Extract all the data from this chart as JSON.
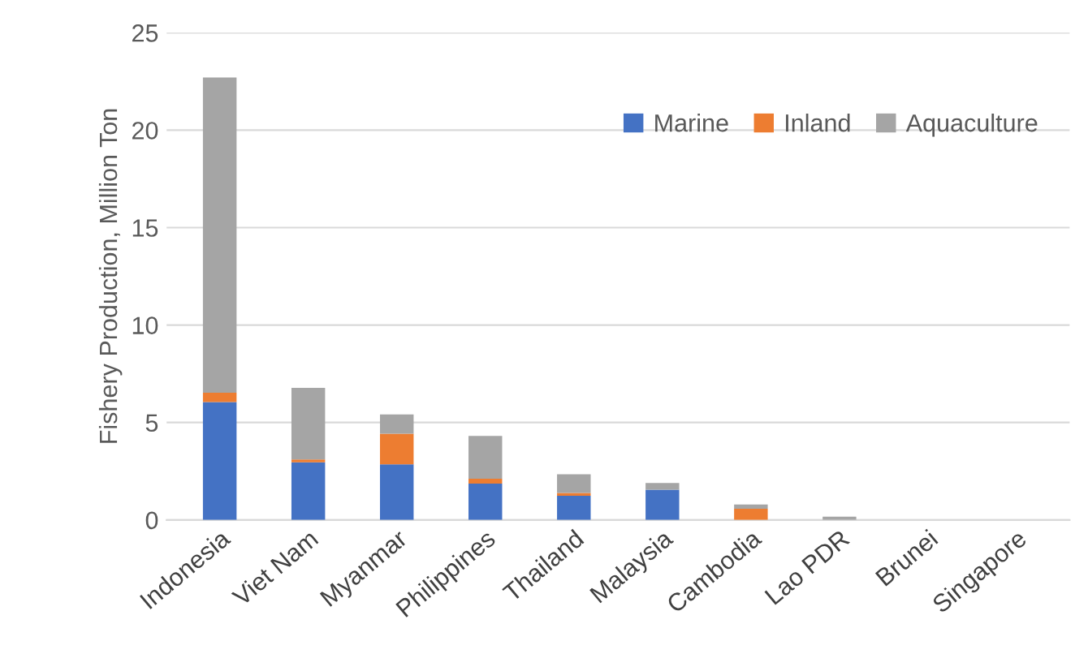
{
  "chart_data": {
    "type": "bar",
    "stacked": true,
    "ylabel": "Fishery Production, Million Ton",
    "categories": [
      "Indonesia",
      "Viet Nam",
      "Myanmar",
      "Philippines",
      "Thailand",
      "Malaysia",
      "Cambodia",
      "Lao PDR",
      "Brunei",
      "Singapore"
    ],
    "series": [
      {
        "name": "Marine",
        "color": "#4472c4",
        "values": [
          6.05,
          2.96,
          2.85,
          1.86,
          1.24,
          1.55,
          0,
          0,
          0,
          0
        ]
      },
      {
        "name": "Inland",
        "color": "#ed7d31",
        "values": [
          0.48,
          0.14,
          1.57,
          0.25,
          0.14,
          0,
          0.57,
          0,
          0,
          0
        ]
      },
      {
        "name": "Aquaculture",
        "color": "#a5a5a5",
        "values": [
          16.17,
          3.68,
          0.99,
          2.2,
          0.96,
          0.34,
          0.22,
          0.17,
          0,
          0
        ]
      }
    ],
    "ylim": [
      0,
      25
    ],
    "yticks": [
      0,
      5,
      10,
      15,
      20,
      25
    ],
    "grid": "y",
    "legend": "top right"
  }
}
